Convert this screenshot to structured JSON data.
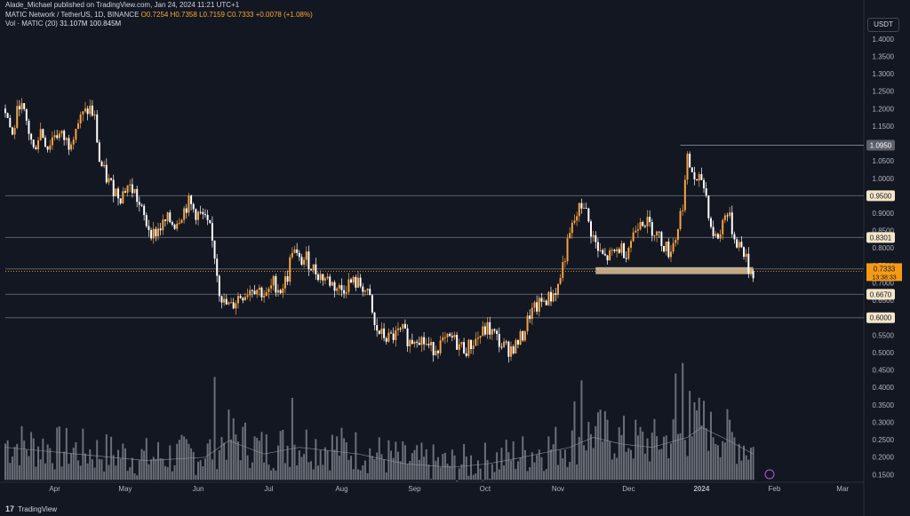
{
  "header": {
    "publisher": "Alade_Michael published on TradingView.com, Jan 24, 2024 11:21 UTC+1",
    "symbol": "MATIC Network / TetherUS, 1D, BINANCE",
    "open_label": "O",
    "open": "0.7254",
    "high_label": "H",
    "high": "0.7358",
    "low_label": "L",
    "low": "0.7159",
    "close_label": "C",
    "close": "0.7333",
    "change": "+0.0078 (+1.08%)",
    "vol_label": "Vol · MATIC (20)",
    "vol_value": "31.107M",
    "vol_ma": "100.845M"
  },
  "currency_button": "USDT",
  "footer": {
    "brand": "TradingView"
  },
  "colors": {
    "background": "#131722",
    "up": "#f7a440",
    "down": "#ffffff",
    "level_line": "#5d606b",
    "zone": "#d9c3a0",
    "last_price": "#f59b13",
    "vol_bar": "#8a8d96"
  },
  "chart_data": {
    "type": "candlestick",
    "y_axis": {
      "min": 0.15,
      "max": 1.4,
      "ticks": [
        "1.4000",
        "1.3500",
        "1.3000",
        "1.2500",
        "1.2000",
        "1.1500",
        "1.1000",
        "1.0500",
        "1.0000",
        "0.9500",
        "0.9000",
        "0.8500",
        "0.8000",
        "0.7500",
        "0.7000",
        "0.6500",
        "0.6000",
        "0.5500",
        "0.5000",
        "0.4500",
        "0.4000",
        "0.3500",
        "0.3000",
        "0.2500",
        "0.2000",
        "0.1500"
      ]
    },
    "x_axis": {
      "ticks": [
        {
          "label": "Apr",
          "day": 21
        },
        {
          "label": "May",
          "day": 51
        },
        {
          "label": "Jun",
          "day": 82
        },
        {
          "label": "Jul",
          "day": 112
        },
        {
          "label": "Aug",
          "day": 143
        },
        {
          "label": "Sep",
          "day": 174
        },
        {
          "label": "Oct",
          "day": 204
        },
        {
          "label": "Nov",
          "day": 235
        },
        {
          "label": "Dec",
          "day": 265
        },
        {
          "label": "2024",
          "day": 296
        },
        {
          "label": "Feb",
          "day": 327
        },
        {
          "label": "Mar",
          "day": 356
        }
      ],
      "days_total": 365
    },
    "horizontal_levels": [
      {
        "price": 1.095,
        "label": "1.0950",
        "style": "gray"
      },
      {
        "price": 0.95,
        "label": "0.9500",
        "style": "light"
      },
      {
        "price": 0.8301,
        "label": "0.8301",
        "style": "light"
      },
      {
        "price": 0.74,
        "label": "0.7400",
        "style": "light"
      },
      {
        "price": 0.667,
        "label": "0.6670",
        "style": "light"
      },
      {
        "price": 0.6,
        "label": "0.6000",
        "style": "light"
      }
    ],
    "zone": {
      "from_day": 251,
      "to_day": 318,
      "low": 0.725,
      "high": 0.745
    },
    "last_price": {
      "price": 0.7333,
      "label": "0.7333",
      "countdown": "13:38:33"
    },
    "price_path": [
      [
        0,
        1.2
      ],
      [
        3,
        1.12
      ],
      [
        6,
        1.22
      ],
      [
        9,
        1.16
      ],
      [
        12,
        1.08
      ],
      [
        15,
        1.14
      ],
      [
        18,
        1.09
      ],
      [
        21,
        1.13
      ],
      [
        24,
        1.12
      ],
      [
        27,
        1.1
      ],
      [
        30,
        1.15
      ],
      [
        33,
        1.18
      ],
      [
        36,
        1.2
      ],
      [
        38,
        1.17
      ],
      [
        40,
        1.05
      ],
      [
        43,
        1.0
      ],
      [
        46,
        0.97
      ],
      [
        49,
        0.95
      ],
      [
        52,
        0.98
      ],
      [
        55,
        0.96
      ],
      [
        57,
        0.92
      ],
      [
        60,
        0.87
      ],
      [
        63,
        0.84
      ],
      [
        66,
        0.86
      ],
      [
        69,
        0.88
      ],
      [
        72,
        0.87
      ],
      [
        75,
        0.9
      ],
      [
        78,
        0.93
      ],
      [
        81,
        0.9
      ],
      [
        84,
        0.89
      ],
      [
        87,
        0.85
      ],
      [
        89,
        0.78
      ],
      [
        91,
        0.68
      ],
      [
        93,
        0.64
      ],
      [
        96,
        0.63
      ],
      [
        99,
        0.66
      ],
      [
        102,
        0.67
      ],
      [
        105,
        0.69
      ],
      [
        108,
        0.68
      ],
      [
        111,
        0.66
      ],
      [
        114,
        0.7
      ],
      [
        117,
        0.68
      ],
      [
        120,
        0.72
      ],
      [
        122,
        0.8
      ],
      [
        125,
        0.76
      ],
      [
        128,
        0.77
      ],
      [
        131,
        0.74
      ],
      [
        134,
        0.72
      ],
      [
        137,
        0.71
      ],
      [
        140,
        0.69
      ],
      [
        143,
        0.68
      ],
      [
        146,
        0.7
      ],
      [
        149,
        0.7
      ],
      [
        152,
        0.69
      ],
      [
        155,
        0.65
      ],
      [
        157,
        0.57
      ],
      [
        160,
        0.55
      ],
      [
        163,
        0.54
      ],
      [
        166,
        0.55
      ],
      [
        169,
        0.56
      ],
      [
        172,
        0.53
      ],
      [
        175,
        0.55
      ],
      [
        178,
        0.53
      ],
      [
        181,
        0.51
      ],
      [
        184,
        0.52
      ],
      [
        187,
        0.53
      ],
      [
        190,
        0.54
      ],
      [
        193,
        0.52
      ],
      [
        196,
        0.51
      ],
      [
        199,
        0.53
      ],
      [
        202,
        0.55
      ],
      [
        205,
        0.57
      ],
      [
        208,
        0.55
      ],
      [
        211,
        0.52
      ],
      [
        214,
        0.51
      ],
      [
        217,
        0.52
      ],
      [
        220,
        0.55
      ],
      [
        223,
        0.61
      ],
      [
        226,
        0.63
      ],
      [
        229,
        0.65
      ],
      [
        232,
        0.66
      ],
      [
        235,
        0.69
      ],
      [
        238,
        0.78
      ],
      [
        241,
        0.86
      ],
      [
        244,
        0.91
      ],
      [
        246,
        0.93
      ],
      [
        248,
        0.87
      ],
      [
        250,
        0.83
      ],
      [
        252,
        0.79
      ],
      [
        255,
        0.77
      ],
      [
        258,
        0.78
      ],
      [
        261,
        0.8
      ],
      [
        264,
        0.79
      ],
      [
        267,
        0.84
      ],
      [
        270,
        0.89
      ],
      [
        273,
        0.87
      ],
      [
        276,
        0.85
      ],
      [
        279,
        0.82
      ],
      [
        282,
        0.79
      ],
      [
        285,
        0.83
      ],
      [
        288,
        0.93
      ],
      [
        290,
        1.05
      ],
      [
        292,
        1.02
      ],
      [
        294,
        0.98
      ],
      [
        296,
        1.0
      ],
      [
        298,
        0.95
      ],
      [
        300,
        0.86
      ],
      [
        302,
        0.83
      ],
      [
        304,
        0.84
      ],
      [
        306,
        0.91
      ],
      [
        308,
        0.88
      ],
      [
        310,
        0.83
      ],
      [
        312,
        0.81
      ],
      [
        314,
        0.79
      ],
      [
        316,
        0.74
      ],
      [
        318,
        0.73
      ]
    ],
    "volume": {
      "axis_low": 0.15,
      "axis_high": 0.47,
      "baseline_profile": [
        [
          0,
          0.24
        ],
        [
          30,
          0.22
        ],
        [
          60,
          0.2
        ],
        [
          85,
          0.21
        ],
        [
          95,
          0.26
        ],
        [
          110,
          0.22
        ],
        [
          125,
          0.24
        ],
        [
          150,
          0.22
        ],
        [
          170,
          0.19
        ],
        [
          190,
          0.18
        ],
        [
          205,
          0.19
        ],
        [
          220,
          0.21
        ],
        [
          240,
          0.24
        ],
        [
          250,
          0.27
        ],
        [
          262,
          0.25
        ],
        [
          275,
          0.24
        ],
        [
          290,
          0.27
        ],
        [
          296,
          0.3
        ],
        [
          305,
          0.27
        ],
        [
          318,
          0.22
        ]
      ],
      "spikes": [
        [
          89,
          0.43
        ],
        [
          122,
          0.37
        ],
        [
          245,
          0.42
        ],
        [
          242,
          0.36
        ],
        [
          285,
          0.44
        ],
        [
          288,
          0.47
        ],
        [
          291,
          0.39
        ],
        [
          300,
          0.33
        ]
      ]
    }
  }
}
